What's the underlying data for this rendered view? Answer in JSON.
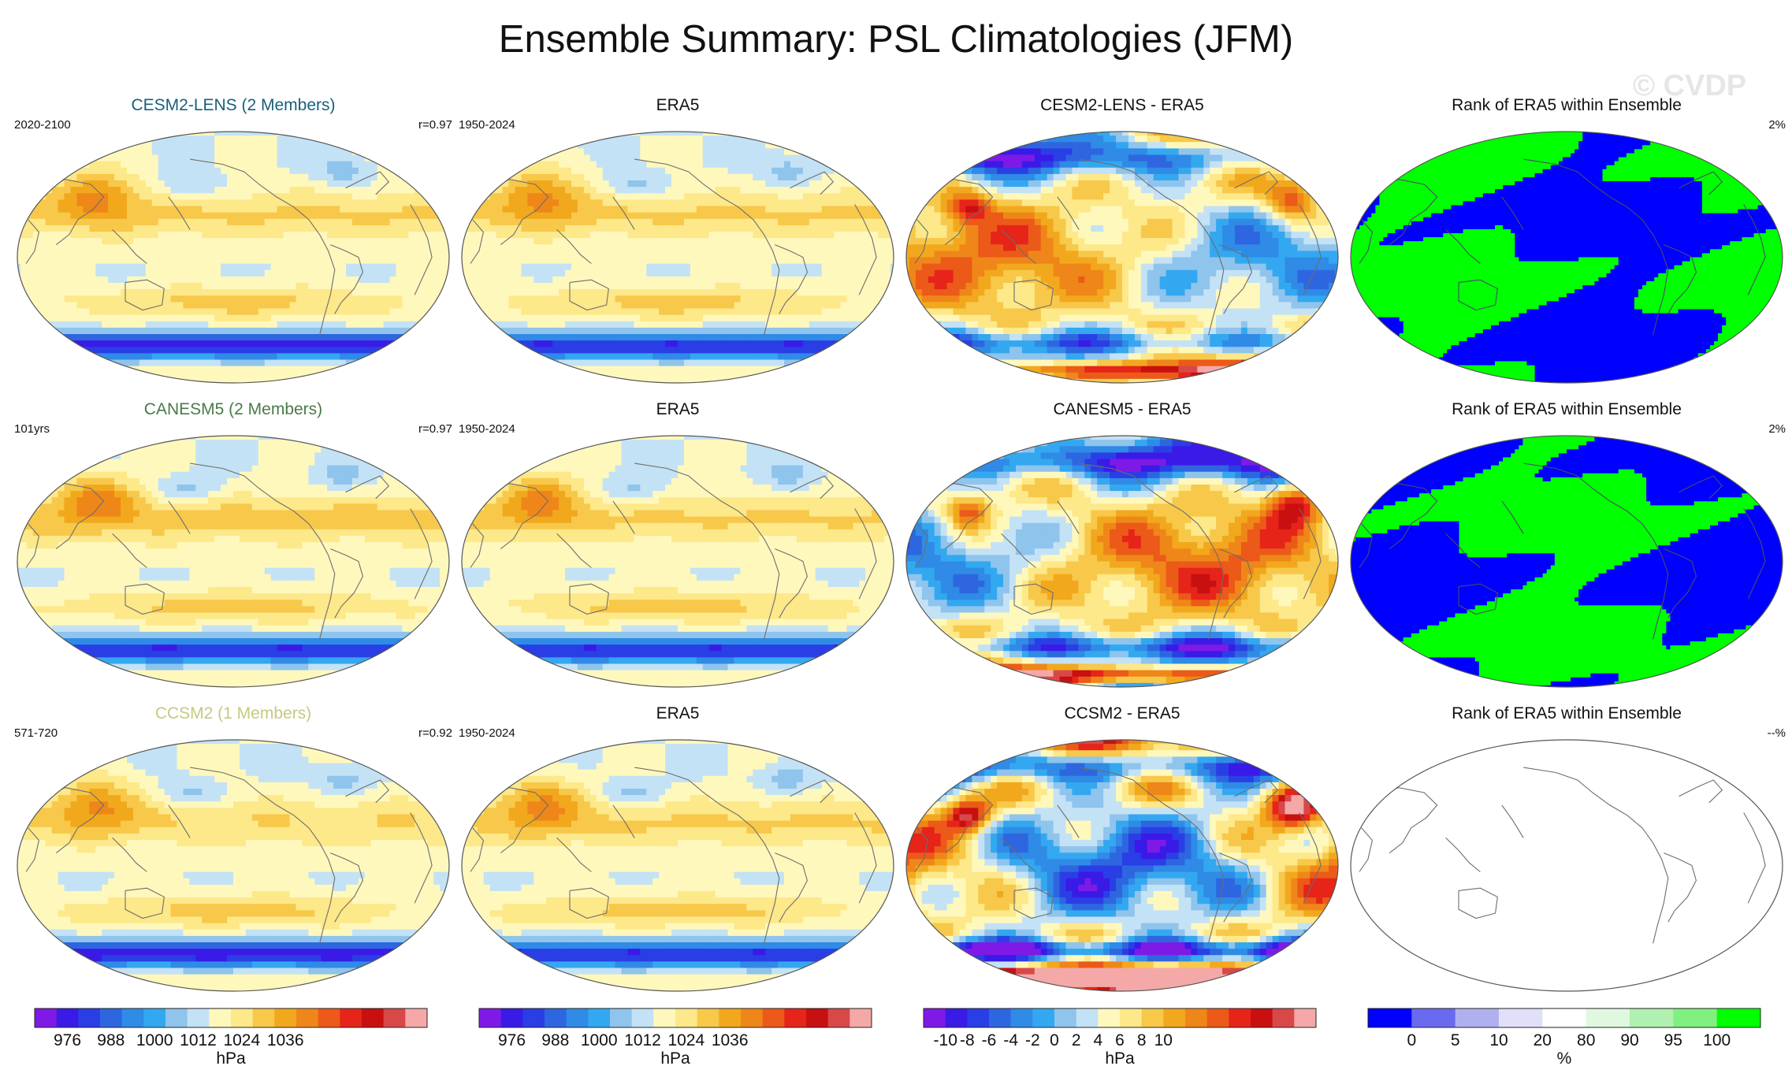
{
  "title": "Ensemble Summary: PSL Climatologies (JFM)",
  "watermark": "© CVDP",
  "rows": [
    {
      "cols": [
        {
          "kind": "field",
          "title": "CESM2-LENS (2 Members)",
          "title_color": "#1a5f7a",
          "left": "2020-2100",
          "right": "r=0.97",
          "field": {
            "hadley": 0.9,
            "south": 1.0,
            "land": 0.2,
            "noise": 0.3,
            "seed": 1
          }
        },
        {
          "kind": "field",
          "title": "ERA5",
          "title_color": "#111111",
          "left": "1950-2024",
          "right": "",
          "field": {
            "hadley": 0.9,
            "south": 0.95,
            "land": 0.25,
            "noise": 0.25,
            "seed": 2
          }
        },
        {
          "kind": "diff",
          "title": "CESM2-LENS - ERA5",
          "title_color": "#111111",
          "left": "",
          "right": "",
          "field": {
            "seed": 3,
            "amp": 1.0
          }
        },
        {
          "kind": "rank",
          "title": "Rank of ERA5 within Ensemble",
          "title_color": "#111111",
          "left": "",
          "right": "2%",
          "field": {
            "seed": 4,
            "frac": 0.55
          }
        }
      ]
    },
    {
      "cols": [
        {
          "kind": "field",
          "title": "CANESM5 (2 Members)",
          "title_color": "#4a7a4a",
          "left": "101yrs",
          "right": "r=0.97",
          "field": {
            "hadley": 1.0,
            "south": 0.95,
            "land": 0.2,
            "noise": 0.3,
            "seed": 5
          }
        },
        {
          "kind": "field",
          "title": "ERA5",
          "title_color": "#111111",
          "left": "1950-2024",
          "right": "",
          "field": {
            "hadley": 0.9,
            "south": 0.95,
            "land": 0.25,
            "noise": 0.25,
            "seed": 6
          }
        },
        {
          "kind": "diff",
          "title": "CANESM5 - ERA5",
          "title_color": "#111111",
          "left": "",
          "right": "",
          "field": {
            "seed": 7,
            "amp": 1.1
          }
        },
        {
          "kind": "rank",
          "title": "Rank of ERA5 within Ensemble",
          "title_color": "#111111",
          "left": "",
          "right": "2%",
          "field": {
            "seed": 8,
            "frac": 0.45
          }
        }
      ]
    },
    {
      "cols": [
        {
          "kind": "field",
          "title": "CCSM2 (1 Members)",
          "title_color": "#c8c880",
          "left": "571-720",
          "right": "r=0.92",
          "field": {
            "hadley": 0.85,
            "south": 1.05,
            "land": 0.2,
            "noise": 0.3,
            "seed": 9
          }
        },
        {
          "kind": "field",
          "title": "ERA5",
          "title_color": "#111111",
          "left": "1950-2024",
          "right": "",
          "field": {
            "hadley": 0.9,
            "south": 0.95,
            "land": 0.25,
            "noise": 0.25,
            "seed": 10
          }
        },
        {
          "kind": "diff",
          "title": "CCSM2 - ERA5",
          "title_color": "#111111",
          "left": "",
          "right": "",
          "field": {
            "seed": 11,
            "amp": 1.5
          }
        },
        {
          "kind": "rank",
          "title": "Rank of ERA5 within Ensemble",
          "title_color": "#111111",
          "left": "",
          "right": "--%",
          "field": {
            "seed": 12,
            "frac": 0,
            "empty": true
          }
        }
      ]
    }
  ],
  "colorbars": [
    {
      "unit": "hPa",
      "tick_labels": [
        "976",
        "988",
        "1000",
        "1012",
        "1024",
        "1036"
      ],
      "tick_positions": [
        1.5,
        3.5,
        5.5,
        7.5,
        9.5,
        11.5
      ],
      "colors": [
        "#7f1ae6",
        "#3a1ae6",
        "#2a3ee6",
        "#2e66e0",
        "#2f8be6",
        "#33a8f0",
        "#8fc4ec",
        "#c4e2f5",
        "#fff8bc",
        "#fde88a",
        "#f7c84a",
        "#f2a81d",
        "#ef8619",
        "#eb5a19",
        "#e62419",
        "#c81010",
        "#d94848",
        "#f4a8a8"
      ]
    },
    {
      "unit": "hPa",
      "tick_labels": [
        "976",
        "988",
        "1000",
        "1012",
        "1024",
        "1036"
      ],
      "tick_positions": [
        1.5,
        3.5,
        5.5,
        7.5,
        9.5,
        11.5
      ],
      "colors": [
        "#7f1ae6",
        "#3a1ae6",
        "#2a3ee6",
        "#2e66e0",
        "#2f8be6",
        "#33a8f0",
        "#8fc4ec",
        "#c4e2f5",
        "#fff8bc",
        "#fde88a",
        "#f7c84a",
        "#f2a81d",
        "#ef8619",
        "#eb5a19",
        "#e62419",
        "#c81010",
        "#d94848",
        "#f4a8a8"
      ]
    },
    {
      "unit": "hPa",
      "tick_labels": [
        "-10",
        "-8",
        "-6",
        "-4",
        "-2",
        "0",
        "2",
        "4",
        "6",
        "8",
        "10"
      ],
      "tick_positions": [
        1,
        2,
        3,
        4,
        5,
        6,
        7,
        8,
        9,
        10,
        11
      ],
      "colors": [
        "#7f1ae6",
        "#3a1ae6",
        "#2a3ee6",
        "#2e66e0",
        "#2f8be6",
        "#33a8f0",
        "#8fc4ec",
        "#c4e2f5",
        "#fff8bc",
        "#fde88a",
        "#f7c84a",
        "#f2a81d",
        "#ef8619",
        "#eb5a19",
        "#e62419",
        "#c81010",
        "#d94848",
        "#f4a8a8"
      ]
    },
    {
      "unit": "%",
      "tick_labels": [
        "0",
        "5",
        "10",
        "20",
        "80",
        "90",
        "95",
        "100"
      ],
      "tick_positions": [
        1,
        2,
        3,
        4,
        5,
        6,
        7,
        8
      ],
      "colors": [
        "#0000ff",
        "#6a6af0",
        "#b0b0f0",
        "#e0e0f8",
        "#ffffff",
        "#e0f8e0",
        "#b0f0b0",
        "#80f080",
        "#00ff00"
      ]
    }
  ],
  "chart_data": [
    {
      "type": "heatmap",
      "title": "CESM2-LENS (2 Members)",
      "subtitle": "2020-2100",
      "annotation": "r=0.97",
      "units": "hPa",
      "levels": [
        970,
        976,
        982,
        988,
        994,
        1000,
        1006,
        1012,
        1018,
        1024,
        1030,
        1036,
        1042,
        1048,
        1054
      ],
      "projection": "Robinson global map, Pacific-centered"
    },
    {
      "type": "heatmap",
      "title": "ERA5",
      "subtitle": "1950-2024",
      "units": "hPa"
    },
    {
      "type": "heatmap",
      "title": "CESM2-LENS - ERA5",
      "units": "hPa",
      "levels": [
        -10,
        -8,
        -6,
        -4,
        -2,
        0,
        2,
        4,
        6,
        8,
        10
      ]
    },
    {
      "type": "heatmap",
      "title": "Rank of ERA5 within Ensemble",
      "annotation": "2%",
      "units": "%",
      "levels": [
        0,
        5,
        10,
        20,
        80,
        90,
        95,
        100
      ]
    },
    {
      "type": "heatmap",
      "title": "CANESM5 (2 Members)",
      "subtitle": "101yrs",
      "annotation": "r=0.97",
      "units": "hPa"
    },
    {
      "type": "heatmap",
      "title": "ERA5",
      "subtitle": "1950-2024",
      "units": "hPa"
    },
    {
      "type": "heatmap",
      "title": "CANESM5 - ERA5",
      "units": "hPa"
    },
    {
      "type": "heatmap",
      "title": "Rank of ERA5 within Ensemble",
      "annotation": "2%",
      "units": "%"
    },
    {
      "type": "heatmap",
      "title": "CCSM2 (1 Members)",
      "subtitle": "571-720",
      "annotation": "r=0.92",
      "units": "hPa"
    },
    {
      "type": "heatmap",
      "title": "ERA5",
      "subtitle": "1950-2024",
      "units": "hPa"
    },
    {
      "type": "heatmap",
      "title": "CCSM2 - ERA5",
      "units": "hPa"
    },
    {
      "type": "heatmap",
      "title": "Rank of ERA5 within Ensemble",
      "annotation": "--%",
      "units": "%"
    }
  ]
}
